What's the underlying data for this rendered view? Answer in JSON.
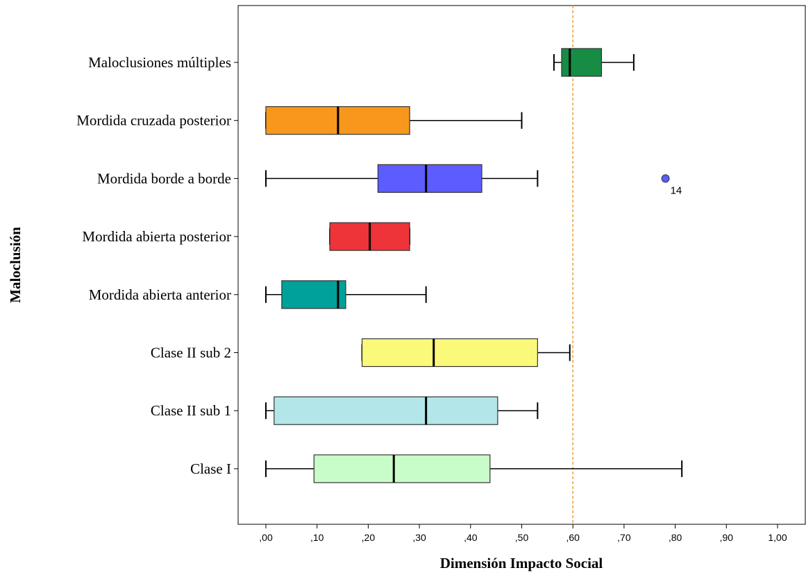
{
  "chart_data": {
    "type": "boxplot",
    "orientation": "horizontal",
    "xlabel": "Dimensión Impacto Social",
    "ylabel": "Maloclusión",
    "xlim": [
      -0.05,
      1.05
    ],
    "x_ticks": [
      0.0,
      0.1,
      0.2,
      0.3,
      0.4,
      0.5,
      0.6,
      0.7,
      0.8,
      0.9,
      1.0
    ],
    "x_tick_labels": [
      ",00",
      ",10",
      ",20",
      ",30",
      ",40",
      ",50",
      ",60",
      ",70",
      ",80",
      ",90",
      "1,00"
    ],
    "reference_line": {
      "x": 0.6,
      "color": "#f0a030",
      "style": "dashed"
    },
    "grid": false,
    "categories": [
      "Maloclusiones múltiples",
      "Mordida cruzada posterior",
      "Mordida borde a borde",
      "Mordida abierta posterior",
      "Mordida abierta anterior",
      "Clase II sub 2",
      "Clase II sub 1",
      "Clase I"
    ],
    "boxes": [
      {
        "category": "Maloclusiones múltiples",
        "min": 0.563,
        "q1": 0.578,
        "median": 0.594,
        "q3": 0.656,
        "max": 0.719,
        "color": "#178c45"
      },
      {
        "category": "Mordida cruzada posterior",
        "min": 0.0,
        "q1": 0.0,
        "median": 0.141,
        "q3": 0.281,
        "max": 0.5,
        "color": "#f7981d"
      },
      {
        "category": "Mordida borde a borde",
        "min": 0.0,
        "q1": 0.219,
        "median": 0.313,
        "q3": 0.422,
        "max": 0.531,
        "color": "#5c5cff",
        "outliers": [
          {
            "value": 0.781,
            "label": "14"
          }
        ]
      },
      {
        "category": "Mordida abierta posterior",
        "min": 0.125,
        "q1": 0.125,
        "median": 0.203,
        "q3": 0.281,
        "max": 0.281,
        "color": "#ee3339"
      },
      {
        "category": "Mordida abierta anterior",
        "min": 0.0,
        "q1": 0.031,
        "median": 0.141,
        "q3": 0.156,
        "max": 0.313,
        "color": "#00a19a"
      },
      {
        "category": "Clase II sub 2",
        "min": 0.188,
        "q1": 0.188,
        "median": 0.328,
        "q3": 0.531,
        "max": 0.594,
        "color": "#fbf97a"
      },
      {
        "category": "Clase II sub 1",
        "min": 0.0,
        "q1": 0.016,
        "median": 0.313,
        "q3": 0.453,
        "max": 0.531,
        "color": "#b3e6e8"
      },
      {
        "category": "Clase I",
        "min": 0.0,
        "q1": 0.094,
        "median": 0.25,
        "q3": 0.438,
        "max": 0.813,
        "color": "#c8fcc8"
      }
    ]
  }
}
